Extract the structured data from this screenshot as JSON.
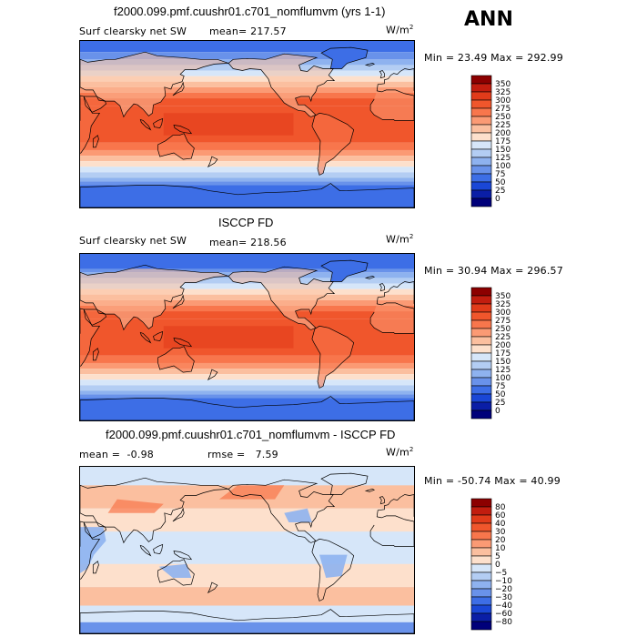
{
  "header": {
    "run_title": "f2000.099.pmf.cuushr01.c701_nomflumvm (yrs 1-1)",
    "season": "ANN"
  },
  "panels": [
    {
      "id": "model",
      "title": "",
      "variable": "Surf clearsky net SW",
      "stat1_label": "mean=",
      "stat1_value": "217.57",
      "stat2_label": "",
      "stat2_value": "",
      "units_main": "W/m",
      "units_exp": "2",
      "minmax": "Min =  23.49 Max = 292.99",
      "levels": [
        "350",
        "325",
        "300",
        "275",
        "250",
        "225",
        "200",
        "175",
        "150",
        "125",
        "100",
        "75",
        "50",
        "25",
        "0"
      ],
      "colors": [
        "#8c0000",
        "#c21d0f",
        "#e13b1a",
        "#f0562c",
        "#f8764c",
        "#fb9a74",
        "#fbbf9f",
        "#fde0cc",
        "#d6e6f9",
        "#b3cdf3",
        "#8eb2ef",
        "#6992ea",
        "#3d6ee6",
        "#1a47d6",
        "#0a1ea6",
        "#00007a"
      ]
    },
    {
      "id": "obs",
      "title": "ISCCP FD",
      "variable": "Surf clearsky net SW",
      "stat1_label": "mean=",
      "stat1_value": "218.56",
      "stat2_label": "",
      "stat2_value": "",
      "units_main": "W/m",
      "units_exp": "2",
      "minmax": "Min =  30.94 Max = 296.57",
      "levels": [
        "350",
        "325",
        "300",
        "275",
        "250",
        "225",
        "200",
        "175",
        "150",
        "125",
        "100",
        "75",
        "50",
        "25",
        "0"
      ],
      "colors": [
        "#8c0000",
        "#c21d0f",
        "#e13b1a",
        "#f0562c",
        "#f8764c",
        "#fb9a74",
        "#fbbf9f",
        "#fde0cc",
        "#d6e6f9",
        "#b3cdf3",
        "#8eb2ef",
        "#6992ea",
        "#3d6ee6",
        "#1a47d6",
        "#0a1ea6",
        "#00007a"
      ]
    },
    {
      "id": "diff",
      "title": "f2000.099.pmf.cuushr01.c701_nomflumvm - ISCCP FD",
      "variable": "",
      "stat1_label": "mean =",
      "stat1_value": "-0.98",
      "stat2_label": "rmse =",
      "stat2_value": "7.59",
      "units_main": "W/m",
      "units_exp": "2",
      "minmax": "Min = -50.74 Max =  40.99",
      "levels": [
        "80",
        "60",
        "40",
        "30",
        "20",
        "10",
        "5",
        "0",
        "−5",
        "−10",
        "−20",
        "−30",
        "−40",
        "−60",
        "−80"
      ],
      "colors": [
        "#8c0000",
        "#c21d0f",
        "#e13b1a",
        "#f0562c",
        "#f8764c",
        "#fb9a74",
        "#fbbf9f",
        "#fde0cc",
        "#d6e6f9",
        "#b3cdf3",
        "#8eb2ef",
        "#6992ea",
        "#3d6ee6",
        "#1a47d6",
        "#0a1ea6",
        "#00007a"
      ]
    }
  ]
}
